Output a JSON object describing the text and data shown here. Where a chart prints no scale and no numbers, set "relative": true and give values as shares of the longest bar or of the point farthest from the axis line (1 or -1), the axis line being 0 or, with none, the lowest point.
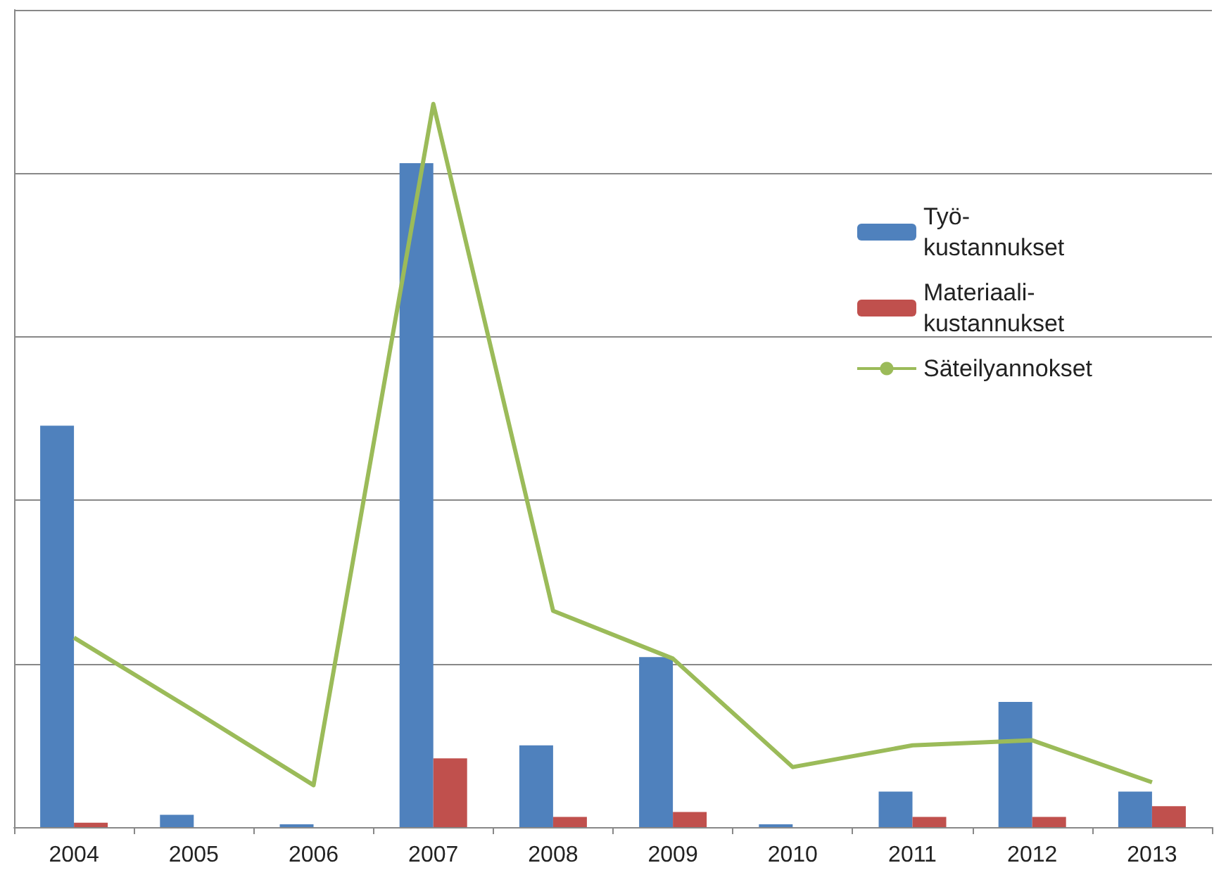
{
  "chart_data": {
    "type": "bar",
    "relative": true,
    "grid": "y",
    "legend": "top right",
    "categories": [
      "2004",
      "2005",
      "2006",
      "2007",
      "2008",
      "2009",
      "2010",
      "2011",
      "2012",
      "2013"
    ],
    "series": [
      {
        "name": "Työ-kustannukset",
        "color": "#4f81bd",
        "values": [
          0.555,
          0.017,
          0.004,
          0.918,
          0.113,
          0.235,
          0.004,
          0.049,
          0.173,
          0.049
        ]
      },
      {
        "name": "Materiaali-kustannukset",
        "color": "#c0504d",
        "values": [
          0.006,
          0,
          0,
          0.095,
          0.014,
          0.021,
          0,
          0.014,
          0.014,
          0.029
        ]
      },
      {
        "name": "Säteilyannokset",
        "type": "line",
        "color": "#9bbb59",
        "marker": "none",
        "values": [
          0.262,
          0.161,
          0.058,
          1,
          0.299,
          0.233,
          0.083,
          0.113,
          0.12,
          0.062
        ]
      }
    ]
  }
}
